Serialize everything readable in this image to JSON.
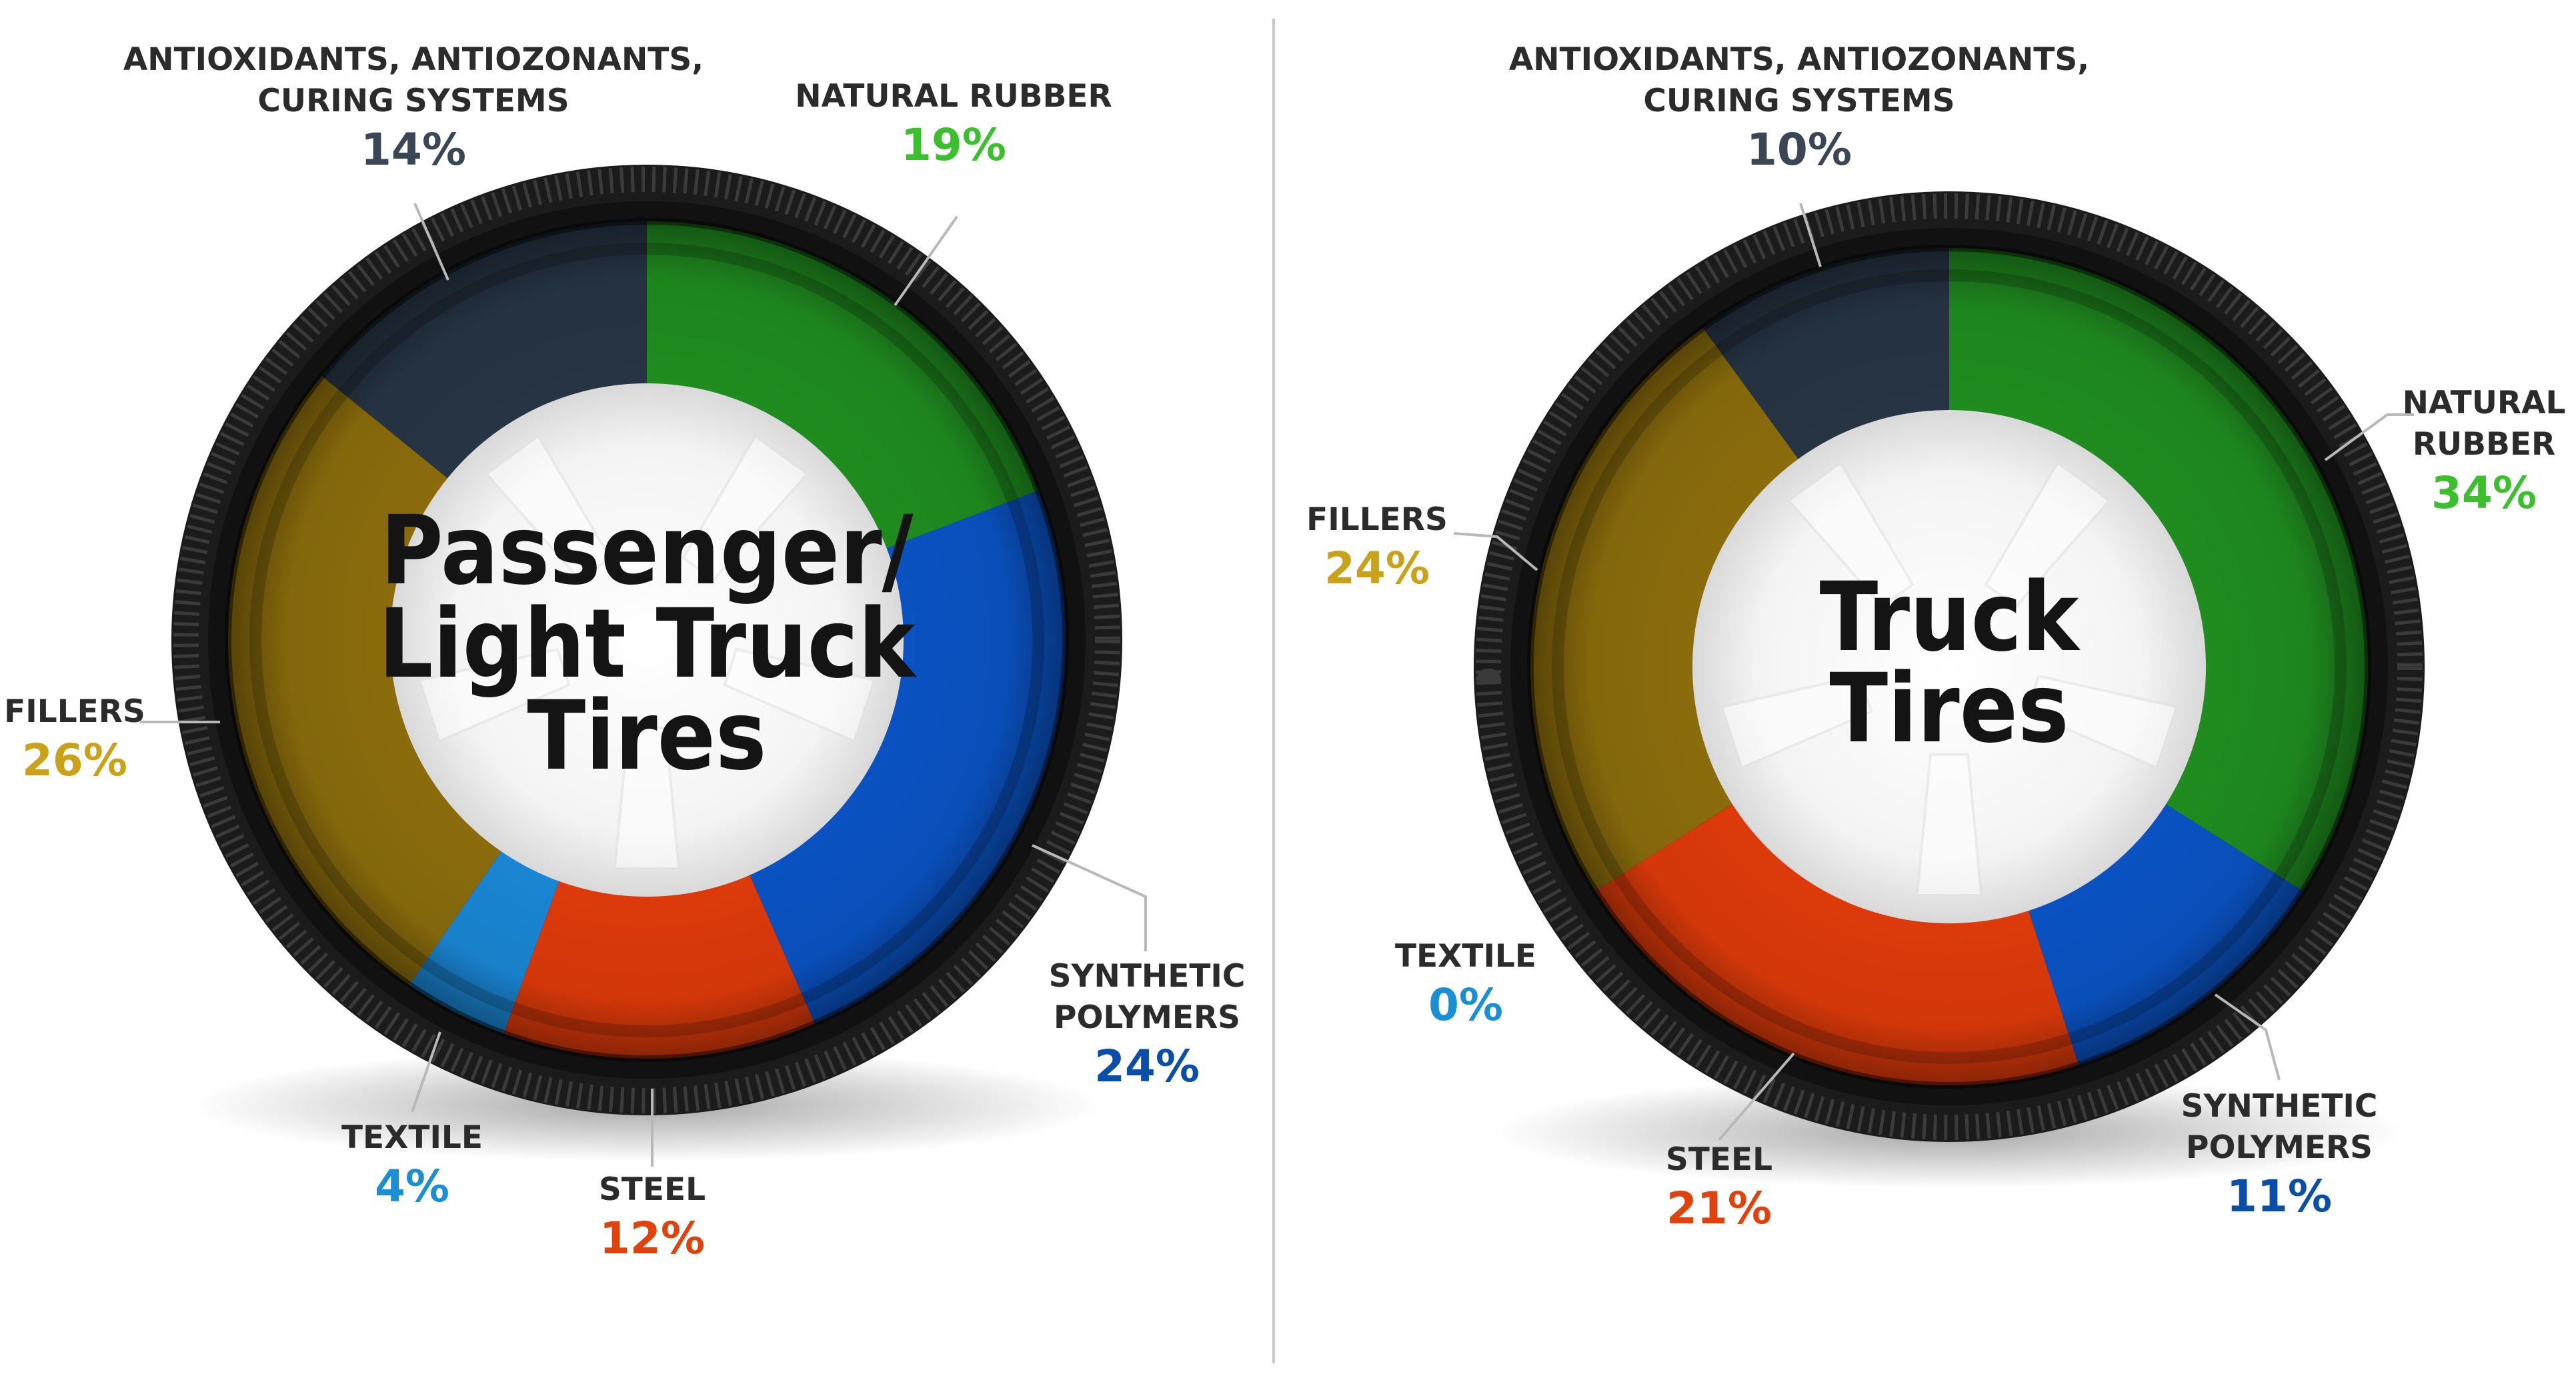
{
  "chart_data": [
    {
      "type": "pie",
      "title_lines": [
        "Passenger/",
        "Light Truck",
        "Tires"
      ],
      "slices": [
        {
          "key": "natural_rubber",
          "label_lines": [
            "NATURAL RUBBER"
          ],
          "value": 19,
          "pct_text": "19%",
          "color": "#1f8c1f",
          "text_color": "#3cbf2e"
        },
        {
          "key": "synthetic_polymers",
          "label_lines": [
            "SYNTHETIC",
            "POLYMERS"
          ],
          "value": 24,
          "pct_text": "24%",
          "color": "#0a52c2",
          "text_color": "#0b4ea8"
        },
        {
          "key": "steel",
          "label_lines": [
            "STEEL"
          ],
          "value": 12,
          "pct_text": "12%",
          "color": "#dd3a0a",
          "text_color": "#e0420e"
        },
        {
          "key": "textile",
          "label_lines": [
            "TEXTILE"
          ],
          "value": 4,
          "pct_text": "4%",
          "color": "#1a86d4",
          "text_color": "#1a8fd4"
        },
        {
          "key": "fillers",
          "label_lines": [
            "FILLERS"
          ],
          "value": 26,
          "pct_text": "26%",
          "color": "#8a6c0c",
          "text_color": "#c9a21a"
        },
        {
          "key": "antioxidants",
          "label_lines": [
            "ANTIOXIDANTS, ANTIOZONANTS,",
            "CURING SYSTEMS"
          ],
          "value": 14,
          "pct_text": "14%",
          "color": "#263444",
          "text_color": "#3a4654"
        }
      ]
    },
    {
      "type": "pie",
      "title_lines": [
        "Truck",
        "Tires"
      ],
      "slices": [
        {
          "key": "natural_rubber",
          "label_lines": [
            "NATURAL",
            "RUBBER"
          ],
          "value": 34,
          "pct_text": "34%",
          "color": "#1f8c1f",
          "text_color": "#3cbf2e"
        },
        {
          "key": "synthetic_polymers",
          "label_lines": [
            "SYNTHETIC",
            "POLYMERS"
          ],
          "value": 11,
          "pct_text": "11%",
          "color": "#0a52c2",
          "text_color": "#0b4ea8"
        },
        {
          "key": "steel",
          "label_lines": [
            "STEEL"
          ],
          "value": 21,
          "pct_text": "21%",
          "color": "#dd3a0a",
          "text_color": "#e0420e"
        },
        {
          "key": "textile",
          "label_lines": [
            "TEXTILE"
          ],
          "value": 0,
          "pct_text": "0%",
          "color": "#1a86d4",
          "text_color": "#1a8fd4"
        },
        {
          "key": "fillers",
          "label_lines": [
            "FILLERS"
          ],
          "value": 24,
          "pct_text": "24%",
          "color": "#8a6c0c",
          "text_color": "#c9a21a"
        },
        {
          "key": "antioxidants",
          "label_lines": [
            "ANTIOXIDANTS, ANTIOZONANTS,",
            "CURING SYSTEMS"
          ],
          "value": 10,
          "pct_text": "10%",
          "color": "#263444",
          "text_color": "#3a4654"
        }
      ]
    }
  ]
}
